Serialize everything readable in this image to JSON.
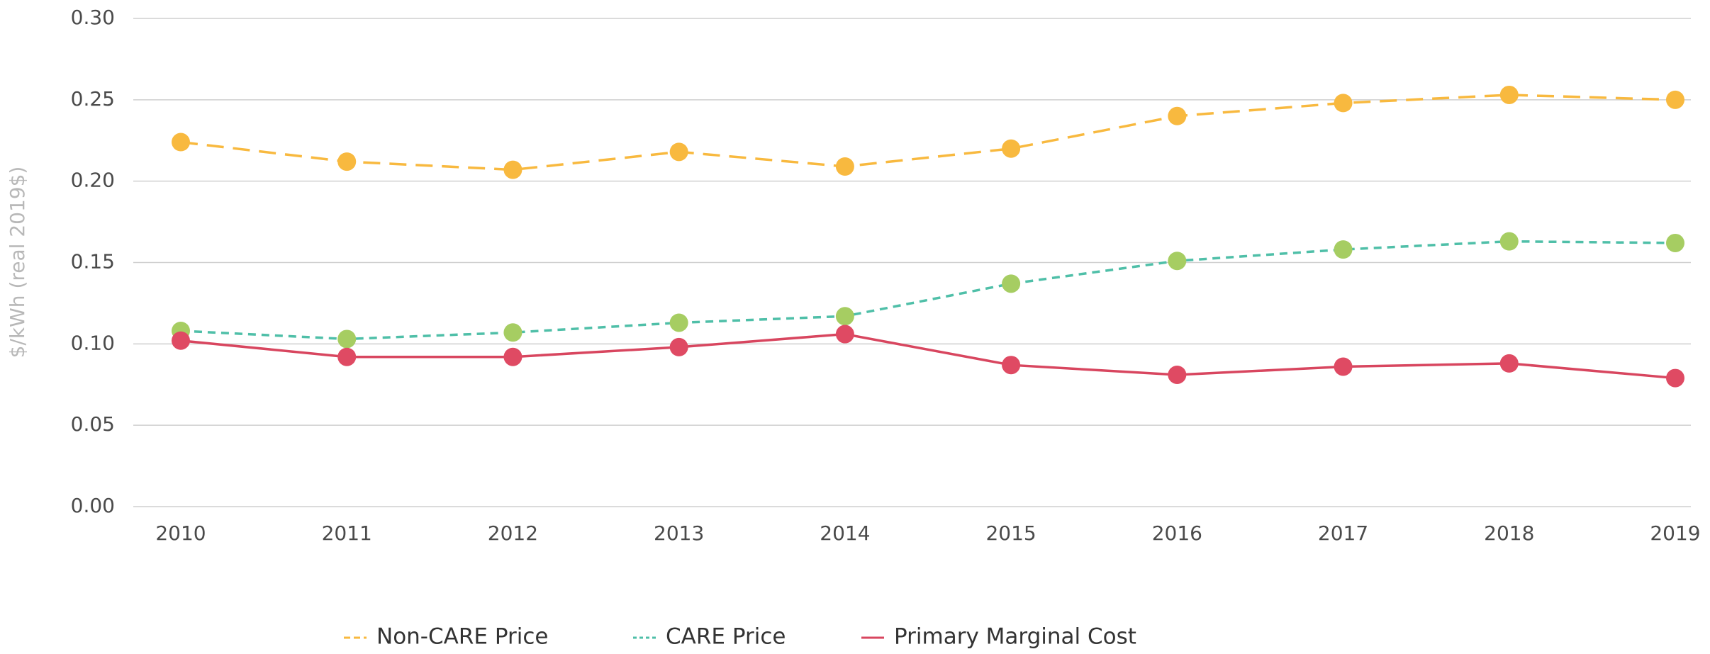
{
  "chart_data": {
    "type": "line",
    "y_label": "$/kWh (real 2019$)",
    "categories": [
      "2010",
      "2011",
      "2012",
      "2013",
      "2014",
      "2015",
      "2016",
      "2017",
      "2018",
      "2019"
    ],
    "series": [
      {
        "name": "Non-CARE Price",
        "color": "#f8b93f",
        "marker_color": "#f8b93f",
        "line_style": "dashed",
        "values": [
          0.224,
          0.212,
          0.207,
          0.218,
          0.209,
          0.22,
          0.24,
          0.248,
          0.253,
          0.25
        ]
      },
      {
        "name": "CARE Price",
        "color": "#4fbfa8",
        "marker_color": "#a6cd62",
        "line_style": "dotted",
        "values": [
          0.108,
          0.103,
          0.107,
          0.113,
          0.117,
          0.137,
          0.151,
          0.158,
          0.163,
          0.162
        ]
      },
      {
        "name": "Primary Marginal Cost",
        "color": "#d8465f",
        "marker_color": "#df4a63",
        "line_style": "solid",
        "values": [
          0.102,
          0.092,
          0.092,
          0.098,
          0.106,
          0.087,
          0.081,
          0.086,
          0.088,
          0.079
        ]
      }
    ],
    "ylim": [
      0,
      0.3
    ],
    "yticks": [
      {
        "value": 0,
        "label": "0.00"
      },
      0.05,
      {
        "value": 0.1,
        "label": "0.10"
      },
      0.15,
      {
        "value": 0.2,
        "label": "0.20"
      },
      0.25,
      {
        "value": 0.3,
        "label": "0.30"
      }
    ],
    "grid": true,
    "legend": "bottom"
  }
}
